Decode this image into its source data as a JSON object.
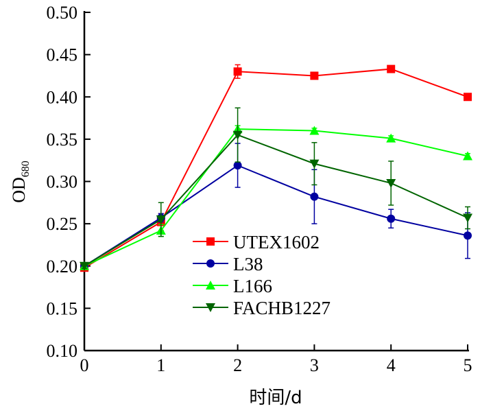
{
  "chart_data": {
    "type": "line",
    "title": "",
    "xlabel": "时间/d",
    "ylabel": "OD",
    "ylabel_subscript": "680",
    "xlim": [
      0,
      5
    ],
    "ylim": [
      0.1,
      0.5
    ],
    "x": [
      0,
      1,
      2,
      3,
      4,
      5
    ],
    "xticks": [
      "0",
      "1",
      "2",
      "3",
      "4",
      "5"
    ],
    "yticks": [
      "0.10",
      "0.15",
      "0.20",
      "0.25",
      "0.30",
      "0.35",
      "0.40",
      "0.45",
      "0.50"
    ],
    "grid": false,
    "legend_position": "lower-center",
    "series": [
      {
        "name": "UTEX1602",
        "color": "#ff0000",
        "marker": "square",
        "values": [
          0.198,
          0.252,
          0.43,
          0.425,
          0.433,
          0.4
        ],
        "errors": [
          0.003,
          0.01,
          0.008,
          0.003,
          0.003,
          0.003
        ]
      },
      {
        "name": "L38",
        "color": "#0000a0",
        "marker": "circle",
        "values": [
          0.2,
          0.257,
          0.319,
          0.282,
          0.256,
          0.236
        ],
        "errors": [
          0.003,
          0.005,
          0.026,
          0.032,
          0.011,
          0.027
        ]
      },
      {
        "name": "L166",
        "color": "#00ff00",
        "marker": "triangle-up",
        "values": [
          0.2,
          0.242,
          0.362,
          0.36,
          0.351,
          0.33
        ],
        "errors": [
          0.003,
          0.007,
          0.004,
          0.003,
          0.003,
          0.003
        ]
      },
      {
        "name": "FACHB1227",
        "color": "#006400",
        "marker": "triangle-down",
        "values": [
          0.2,
          0.255,
          0.355,
          0.321,
          0.298,
          0.257
        ],
        "errors": [
          0.003,
          0.02,
          0.032,
          0.025,
          0.026,
          0.013
        ]
      }
    ]
  }
}
